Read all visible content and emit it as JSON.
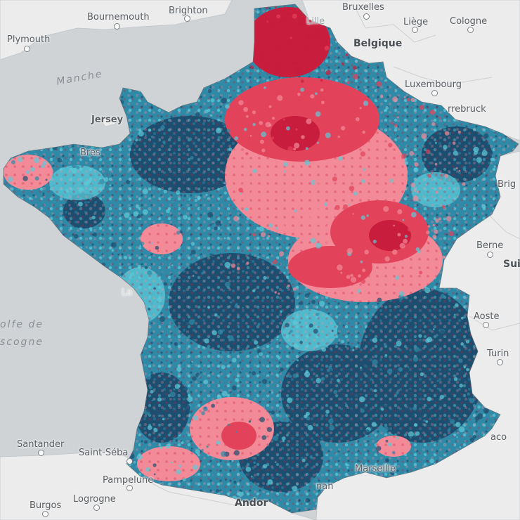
{
  "map": {
    "colors": {
      "sea": "#cfd3d6",
      "land": "#ececec",
      "dark_blue": "#1c4e70",
      "mid_blue": "#2f8aa8",
      "light_blue": "#5ccad8",
      "pink": "#f28a98",
      "red": "#e2435a",
      "dark_red": "#c81d3d"
    },
    "places": {
      "plymouth": "Plymouth",
      "bournemouth": "Bournemouth",
      "brighton": "Brighton",
      "lille": "Lille",
      "bruxelles": "Bruxelles",
      "liege": "Liège",
      "cologne": "Cologne",
      "belgique": "Belgique",
      "luxembourg": "Luxembourg",
      "sarrebruck": "rrebruck",
      "jersey": "Jersey",
      "manche": "Manche",
      "brest": "Bres",
      "berne": "Berne",
      "suisse": "Sui",
      "brig": "Brig",
      "aoste": "Aoste",
      "turin": "Turin",
      "golfe1": "olfe de",
      "golfe2": "scogne",
      "santander": "Santander",
      "saint_sebastien": "Saint-Séba",
      "pampelune": "Pampelune",
      "logrogne": "Logrogne",
      "burgos": "Burgos",
      "andorre": "Andor",
      "marseille": "Marseille",
      "monaco": "aco",
      "lorient": "La",
      "perpignan": "nan"
    }
  }
}
